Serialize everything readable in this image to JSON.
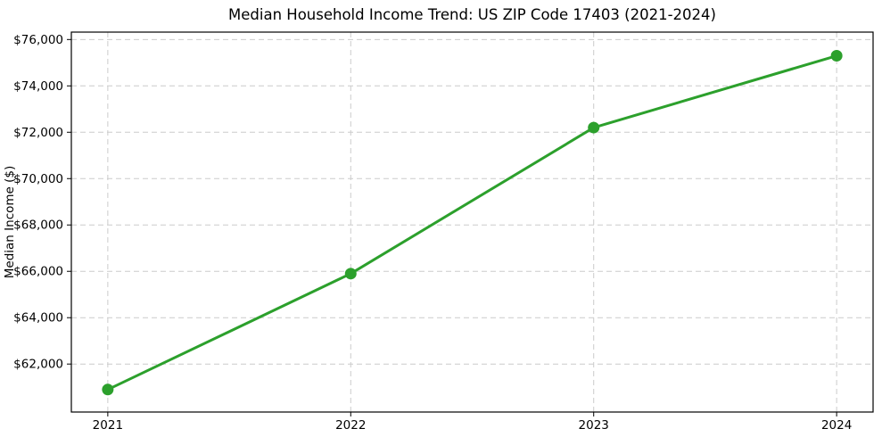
{
  "chart_data": {
    "type": "line",
    "title": "Median Household Income Trend: US ZIP Code 17403 (2021-2024)",
    "xlabel": "",
    "ylabel": "Median Income ($)",
    "x": [
      2021,
      2022,
      2023,
      2024
    ],
    "series": [
      {
        "name": "Median Household Income",
        "values": [
          60900,
          65900,
          72200,
          75300
        ]
      }
    ],
    "xticks": [
      2021,
      2022,
      2023,
      2024
    ],
    "xtick_labels": [
      "2021",
      "2022",
      "2023",
      "2024"
    ],
    "yticks": [
      62000,
      64000,
      66000,
      68000,
      70000,
      72000,
      74000,
      76000
    ],
    "ytick_labels": [
      "$62,000",
      "$64,000",
      "$66,000",
      "$68,000",
      "$70,000",
      "$72,000",
      "$74,000",
      "$76,000"
    ],
    "xlim": [
      2020.85,
      2024.15
    ],
    "ylim": [
      59930,
      76320
    ],
    "grid": true,
    "grid_style": "dashed",
    "legend": "none",
    "colors": {
      "line": "#2ca02c",
      "marker": "#2ca02c",
      "grid": "#cccccc",
      "spine": "#000000",
      "text": "#000000",
      "background": "#ffffff"
    },
    "marker": "circle"
  }
}
